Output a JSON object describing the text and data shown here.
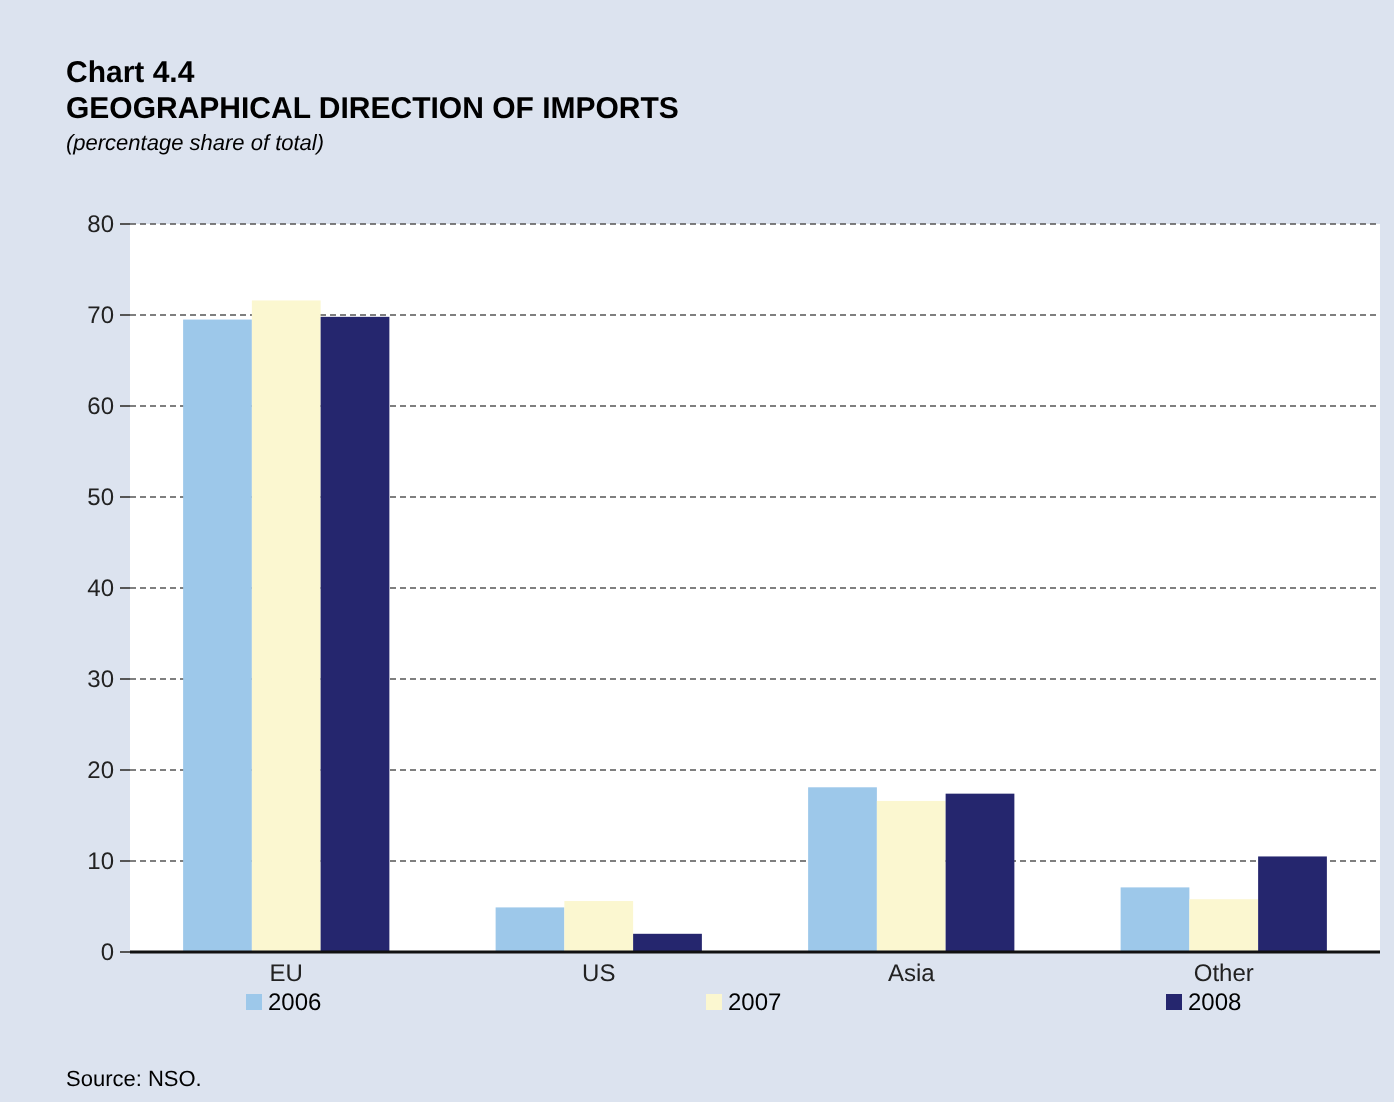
{
  "chart_data": {
    "type": "bar",
    "title": "Chart 4.4",
    "subtitle": "GEOGRAPHICAL DIRECTION OF IMPORTS",
    "ylabel": "(percentage share of total)",
    "categories": [
      "EU",
      "US",
      "Asia",
      "Other"
    ],
    "series": [
      {
        "name": "2006",
        "color": "#9dc8ea",
        "values": [
          69.5,
          4.9,
          18.1,
          7.1
        ]
      },
      {
        "name": "2007",
        "color": "#fbf7d0",
        "values": [
          71.6,
          5.6,
          16.6,
          5.8
        ]
      },
      {
        "name": "2008",
        "color": "#25266e",
        "values": [
          69.8,
          2.0,
          17.4,
          10.5
        ]
      }
    ],
    "ylim": [
      0,
      80
    ],
    "yticks": [
      0,
      10,
      20,
      30,
      40,
      50,
      60,
      70,
      80
    ],
    "grid": "y",
    "legend": "bottom",
    "annotations": [
      "Source: NSO."
    ]
  }
}
